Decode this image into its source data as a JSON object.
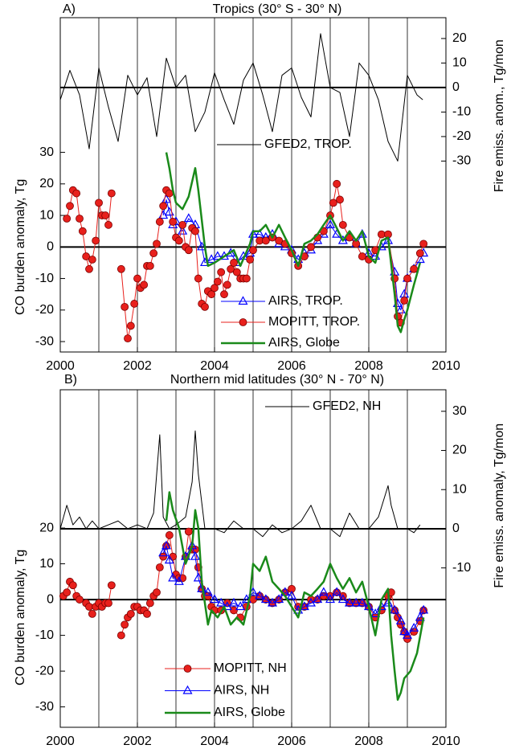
{
  "chart_data": [
    {
      "type": "line",
      "panel_label": "A)",
      "title": "Tropics (30° S - 30° N)",
      "ylabel": "CO burden anomaly, Tg",
      "y2label": "Fire emiss. anom., Tg/mon",
      "xlim": [
        2000,
        2010
      ],
      "xticks": [
        2000,
        2002,
        2004,
        2006,
        2008,
        2010
      ],
      "xgrid": [
        2001,
        2002,
        2003,
        2004,
        2005,
        2006,
        2007,
        2008,
        2009
      ],
      "ylim": [
        -33.3,
        72.7
      ],
      "yticks": [
        -30,
        -20,
        -10,
        0,
        10,
        20,
        30
      ],
      "y2lim": [
        -107.9,
        28.5
      ],
      "y2ticks": [
        -30,
        -20,
        -10,
        0,
        10,
        20
      ],
      "hlines": [
        {
          "axis": "y",
          "value": 0
        },
        {
          "axis": "y2",
          "value": 0
        }
      ],
      "series": [
        {
          "name": "GFED2, TROP.",
          "color": "#000000",
          "axis": "y2",
          "marker": "none",
          "linewidth": 1,
          "x": [
            2000,
            2000.25,
            2000.5,
            2000.75,
            2001,
            2001.25,
            2001.5,
            2001.75,
            2002,
            2002.25,
            2002.5,
            2002.75,
            2003,
            2003.25,
            2003.5,
            2003.75,
            2004,
            2004.25,
            2004.5,
            2004.75,
            2005,
            2005.25,
            2005.5,
            2005.75,
            2006,
            2006.25,
            2006.5,
            2006.75,
            2007,
            2007.25,
            2007.5,
            2007.75,
            2008,
            2008.25,
            2008.5,
            2008.75,
            2009,
            2009.25,
            2009.4
          ],
          "values": [
            -5,
            7,
            -3,
            -25,
            8,
            -8,
            -22,
            5,
            -3,
            4,
            -20,
            12,
            0,
            5,
            -18,
            -10,
            6,
            -5,
            -15,
            3,
            10,
            -3,
            -18,
            5,
            8,
            -4,
            -12,
            22,
            0,
            -2,
            -20,
            10,
            5,
            -5,
            -22,
            -30,
            5,
            -3,
            -5
          ]
        },
        {
          "name": "AIRS, TROP.",
          "color": "#0000ff",
          "axis": "y",
          "marker": "triangle",
          "linewidth": 1,
          "x": [
            2002.67,
            2002.75,
            2002.83,
            2002.92,
            2003,
            2003.17,
            2003.33,
            2003.5,
            2003.67,
            2003.75,
            2003.92,
            2004.08,
            2004.25,
            2004.42,
            2004.58,
            2004.75,
            2004.92,
            2005,
            2005.17,
            2005.33,
            2005.5,
            2005.67,
            2005.83,
            2006,
            2006.17,
            2006.33,
            2006.5,
            2006.67,
            2006.83,
            2007,
            2007.17,
            2007.33,
            2007.5,
            2007.67,
            2007.83,
            2008,
            2008.17,
            2008.33,
            2008.5,
            2008.67,
            2008.75,
            2008.83,
            2008.92,
            2009,
            2009.17,
            2009.33,
            2009.42
          ],
          "values": [
            10,
            15,
            11,
            7,
            8,
            5,
            9,
            7,
            0,
            -5,
            -4,
            -3,
            -3,
            -2,
            -5,
            -3,
            -2,
            4,
            4,
            3,
            4,
            1,
            0,
            -1,
            -4,
            -2,
            -1,
            2,
            4,
            7,
            4,
            2,
            3,
            1,
            4,
            -2,
            -3,
            0,
            2,
            -8,
            -18,
            -20,
            -15,
            -10,
            -7,
            -4,
            -2
          ]
        },
        {
          "name": "MOPITT, TROP.",
          "color": "#e8201c",
          "axis": "y",
          "marker": "circle",
          "linewidth": 1,
          "x": [
            2000.17,
            2000.25,
            2000.33,
            2000.42,
            2000.5,
            2000.58,
            2000.67,
            2000.75,
            2000.83,
            2000.92,
            2001,
            2001.08,
            2001.17,
            2001.25,
            2001.33,
            2001.45,
            2001.58,
            2001.67,
            2001.75,
            2001.83,
            2001.92,
            2002,
            2002.08,
            2002.17,
            2002.25,
            2002.33,
            2002.42,
            2002.5,
            2002.58,
            2002.67,
            2002.75,
            2002.83,
            2002.92,
            2003,
            2003.08,
            2003.17,
            2003.25,
            2003.33,
            2003.42,
            2003.5,
            2003.58,
            2003.67,
            2003.75,
            2003.83,
            2003.92,
            2004,
            2004.08,
            2004.17,
            2004.25,
            2004.33,
            2004.42,
            2004.5,
            2004.58,
            2004.67,
            2004.75,
            2004.83,
            2004.92,
            2005,
            2005.17,
            2005.33,
            2005.5,
            2005.67,
            2005.83,
            2006,
            2006.17,
            2006.33,
            2006.5,
            2006.67,
            2006.83,
            2007,
            2007.08,
            2007.17,
            2007.25,
            2007.33,
            2007.5,
            2007.67,
            2007.83,
            2008,
            2008.17,
            2008.33,
            2008.5,
            2008.67,
            2008.75,
            2008.83,
            2008.92,
            2009,
            2009.17,
            2009.33,
            2009.42
          ],
          "values": [
            9,
            13,
            18,
            17,
            9,
            5,
            -3,
            -7,
            -4,
            2,
            14,
            10,
            10,
            7,
            17,
            null,
            -7,
            -19,
            -29,
            -25,
            -18,
            -10,
            -13,
            -12,
            -6,
            -6,
            -2,
            1,
            8,
            13,
            18,
            17,
            8,
            3,
            2,
            7,
            0,
            -1,
            6,
            5,
            -10,
            -18,
            -19,
            -14,
            -15,
            -13,
            -11,
            -8,
            -15,
            -12,
            -7,
            -5,
            -8,
            -10,
            -10,
            -10,
            -4,
            -1,
            2,
            2,
            3,
            2,
            1,
            -2,
            -6,
            -3,
            0,
            3,
            5,
            10,
            14,
            20,
            15,
            7,
            3,
            1,
            -3,
            -4,
            -1,
            4,
            4,
            -10,
            -22,
            -24,
            -17,
            -10,
            -7,
            -2,
            1
          ]
        },
        {
          "name": "AIRS, Globe",
          "color": "#1a8a1a",
          "axis": "y",
          "marker": "none",
          "linewidth": 2.5,
          "x": [
            2002.75,
            2002.83,
            2002.92,
            2003,
            2003.17,
            2003.33,
            2003.5,
            2003.58,
            2003.75,
            2003.83,
            2004,
            2004.25,
            2004.5,
            2004.67,
            2004.92,
            2005,
            2005.17,
            2005.33,
            2005.5,
            2005.67,
            2005.83,
            2006,
            2006.17,
            2006.33,
            2006.5,
            2006.67,
            2006.83,
            2007,
            2007.17,
            2007.33,
            2007.5,
            2007.67,
            2007.83,
            2008,
            2008.17,
            2008.33,
            2008.5,
            2008.67,
            2008.75,
            2008.83,
            2008.92,
            2009,
            2009.17,
            2009.33
          ],
          "values": [
            30,
            25,
            18,
            14,
            12,
            16,
            25,
            18,
            0,
            -6,
            -5,
            -3,
            -1,
            -6,
            1,
            5,
            5,
            7,
            3,
            7,
            3,
            -1,
            -6,
            1,
            2,
            4,
            7,
            10,
            6,
            2,
            5,
            2,
            5,
            -3,
            -5,
            2,
            3,
            -15,
            -25,
            -27,
            -23,
            -20,
            -12,
            -5
          ]
        }
      ]
    },
    {
      "type": "line",
      "panel_label": "B)",
      "title": "Northern mid latitudes (30° N - 70° N)",
      "ylabel": "CO burden anomaly, Tg",
      "y2label": "Fire emiss. anomaly, Tg/mon",
      "xlim": [
        2000,
        2010
      ],
      "xticks": [
        2000,
        2002,
        2004,
        2006,
        2008,
        2010
      ],
      "xgrid": [
        2001,
        2002,
        2003,
        2004,
        2005,
        2006,
        2007,
        2008,
        2009
      ],
      "ylim": [
        -35.7,
        58.65
      ],
      "yticks": [
        -30,
        -20,
        -10,
        0,
        10,
        20
      ],
      "y2lim": [
        -50.7,
        35.5
      ],
      "y2ticks": [
        -10,
        0,
        10,
        20,
        30
      ],
      "hlines": [
        {
          "axis": "y",
          "value": 0
        },
        {
          "axis": "y2",
          "value": 0
        }
      ],
      "series": [
        {
          "name": "GFED2, NH",
          "color": "#000000",
          "axis": "y2",
          "marker": "none",
          "linewidth": 1,
          "x": [
            2000,
            2000.17,
            2000.33,
            2000.5,
            2000.67,
            2000.83,
            2001,
            2001.25,
            2001.5,
            2001.75,
            2002,
            2002.25,
            2002.42,
            2002.58,
            2002.67,
            2002.83,
            2003,
            2003.25,
            2003.42,
            2003.5,
            2003.58,
            2003.75,
            2004,
            2004.25,
            2004.5,
            2004.75,
            2005,
            2005.25,
            2005.5,
            2005.75,
            2006,
            2006.25,
            2006.5,
            2006.75,
            2007,
            2007.25,
            2007.5,
            2007.75,
            2008,
            2008.25,
            2008.5,
            2008.58,
            2008.75,
            2009,
            2009.17,
            2009.33
          ],
          "values": [
            0,
            6,
            1,
            3,
            0,
            2,
            0,
            1,
            2,
            0,
            1,
            0,
            4,
            24,
            3,
            0,
            1,
            3,
            12,
            25,
            14,
            0,
            0,
            -1,
            2,
            0,
            0,
            -2,
            1,
            -1,
            0,
            2,
            6,
            0,
            0,
            -2,
            4,
            0,
            0,
            3,
            11,
            6,
            0,
            0,
            -1,
            1
          ]
        },
        {
          "name": "MOPITT, NH",
          "color": "#e8201c",
          "axis": "y",
          "marker": "circle",
          "linewidth": 1,
          "x": [
            2000.08,
            2000.17,
            2000.25,
            2000.33,
            2000.42,
            2000.5,
            2000.67,
            2000.75,
            2000.83,
            2000.92,
            2001,
            2001.08,
            2001.17,
            2001.25,
            2001.33,
            2001.45,
            2001.58,
            2001.67,
            2001.75,
            2001.83,
            2001.92,
            2002,
            2002.08,
            2002.17,
            2002.25,
            2002.33,
            2002.42,
            2002.5,
            2002.58,
            2002.67,
            2002.75,
            2002.83,
            2002.92,
            2003,
            2003.08,
            2003.17,
            2003.25,
            2003.33,
            2003.42,
            2003.5,
            2003.58,
            2003.67,
            2003.75,
            2003.83,
            2003.92,
            2004,
            2004.17,
            2004.33,
            2004.5,
            2004.67,
            2004.83,
            2005,
            2005.17,
            2005.33,
            2005.5,
            2005.67,
            2005.83,
            2006,
            2006.17,
            2006.33,
            2006.5,
            2006.67,
            2006.83,
            2007,
            2007.17,
            2007.33,
            2007.5,
            2007.67,
            2007.83,
            2008,
            2008.17,
            2008.33,
            2008.5,
            2008.58,
            2008.67,
            2008.75,
            2008.83,
            2008.92,
            2009,
            2009.17,
            2009.33,
            2009.42
          ],
          "values": [
            1,
            2,
            5,
            4,
            1,
            0,
            -1,
            -2,
            -4,
            -2,
            -1,
            -2,
            -1,
            -1,
            4,
            null,
            -10,
            -7,
            -5,
            -4,
            -2,
            -2,
            -3,
            -3,
            -4,
            -1,
            1,
            2,
            9,
            12,
            15,
            18,
            12,
            7,
            6,
            6,
            12,
            19,
            14,
            14,
            9,
            3,
            1,
            1,
            -2,
            -3,
            -3,
            -1,
            -3,
            -5,
            -2,
            0,
            1,
            0,
            -1,
            0,
            2,
            3,
            -2,
            -2,
            0,
            0,
            1,
            1,
            2,
            1,
            -1,
            -1,
            -1,
            -2,
            -5,
            -3,
            1,
            2,
            -3,
            -5,
            -7,
            -9,
            -11,
            -9,
            -6,
            -3
          ]
        },
        {
          "name": "AIRS, NH",
          "color": "#0000ff",
          "axis": "y",
          "marker": "triangle",
          "linewidth": 1,
          "x": [
            2002.67,
            2002.75,
            2002.83,
            2002.92,
            2003.08,
            2003.25,
            2003.42,
            2003.5,
            2003.58,
            2003.67,
            2003.83,
            2004,
            2004.17,
            2004.33,
            2004.5,
            2004.67,
            2004.83,
            2005,
            2005.17,
            2005.33,
            2005.5,
            2005.67,
            2005.83,
            2006,
            2006.17,
            2006.33,
            2006.5,
            2006.67,
            2006.83,
            2007,
            2007.17,
            2007.33,
            2007.5,
            2007.67,
            2007.83,
            2008,
            2008.17,
            2008.33,
            2008.5,
            2008.67,
            2008.83,
            2008.92,
            2009,
            2009.17,
            2009.33,
            2009.42
          ],
          "values": [
            13,
            15,
            11,
            6,
            5,
            12,
            15,
            12,
            6,
            3,
            2,
            0,
            -1,
            -2,
            -1,
            -2,
            0,
            2,
            1,
            0,
            -1,
            0,
            2,
            1,
            -3,
            -2,
            -1,
            0,
            2,
            0,
            2,
            0,
            -1,
            -1,
            -1,
            -2,
            -4,
            -2,
            -1,
            -3,
            -6,
            -9,
            -10,
            -8,
            -5,
            -3
          ]
        },
        {
          "name": "AIRS, Globe",
          "color": "#1a8a1a",
          "axis": "y",
          "marker": "none",
          "linewidth": 2.5,
          "x": [
            2002.75,
            2002.83,
            2002.92,
            2003.08,
            2003.25,
            2003.42,
            2003.5,
            2003.58,
            2003.67,
            2003.83,
            2003.92,
            2004.08,
            2004.25,
            2004.42,
            2004.58,
            2004.75,
            2004.92,
            2005,
            2005.17,
            2005.33,
            2005.5,
            2005.67,
            2005.83,
            2006,
            2006.17,
            2006.33,
            2006.5,
            2006.67,
            2006.83,
            2007,
            2007.17,
            2007.33,
            2007.5,
            2007.67,
            2007.83,
            2008,
            2008.17,
            2008.33,
            2008.5,
            2008.58,
            2008.67,
            2008.75,
            2008.83,
            2008.92,
            2009.08,
            2009.25,
            2009.42
          ],
          "values": [
            22,
            30,
            25,
            20,
            10,
            15,
            25,
            20,
            5,
            -7,
            -3,
            -5,
            -2,
            -7,
            -5,
            -7,
            1,
            10,
            8,
            12,
            5,
            3,
            1,
            -2,
            -5,
            2,
            1,
            3,
            5,
            10,
            6,
            3,
            6,
            2,
            5,
            -2,
            -10,
            0,
            3,
            -10,
            -20,
            -28,
            -26,
            -22,
            -20,
            -15,
            -5
          ]
        }
      ]
    }
  ]
}
